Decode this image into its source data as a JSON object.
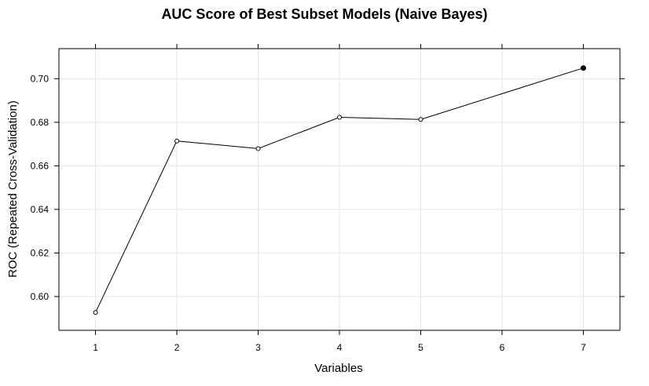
{
  "chart_data": {
    "type": "line",
    "title": "AUC Score of Best Subset Models (Naive Bayes)",
    "xlabel": "Variables",
    "ylabel": "ROC (Repeated Cross-Validation)",
    "x": [
      1,
      2,
      3,
      4,
      5,
      7
    ],
    "y": [
      0.5927,
      0.6714,
      0.6679,
      0.6823,
      0.6813,
      0.7049
    ],
    "best_index": 5,
    "xlim": [
      0.55,
      7.45
    ],
    "ylim": [
      0.5845,
      0.7138
    ],
    "xticks": [
      "1",
      "2",
      "3",
      "4",
      "5",
      "6",
      "7"
    ],
    "xtick_values": [
      1,
      2,
      3,
      4,
      5,
      6,
      7
    ],
    "yticks": [
      "0.60",
      "0.62",
      "0.64",
      "0.66",
      "0.68",
      "0.70"
    ],
    "ytick_values": [
      0.6,
      0.62,
      0.64,
      0.66,
      0.68,
      0.7
    ],
    "grid": true,
    "colors": {
      "line": "#000000",
      "grid": "#e6e6e6",
      "point_fill": "#ffffff",
      "best_point_fill": "#000000"
    }
  }
}
